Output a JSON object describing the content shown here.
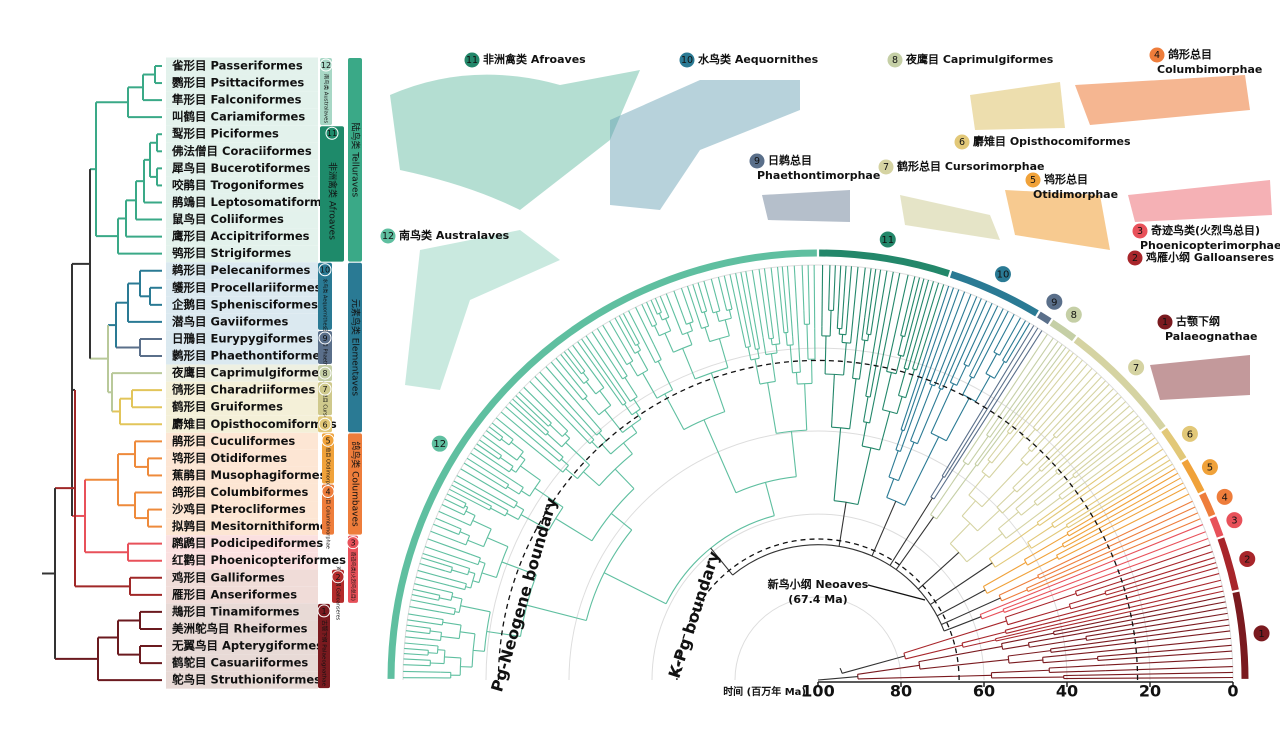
{
  "left_panel": {
    "orders": [
      "雀形目 Passeriformes",
      "鹦形目 Psittaciformes",
      "隼形目 Falconiformes",
      "叫鹤目 Cariamiformes",
      "䴕形目 Piciformes",
      "佛法僧目 Coraciiformes",
      "犀鸟目 Bucerotiformes",
      "咬鹃目 Trogoniformes",
      "鹃鴗目 Leptosomatiformes",
      "鼠鸟目 Coliiformes",
      "鹰形目 Accipitriformes",
      "鸮形目 Strigiformes",
      "鹈形目 Pelecaniformes",
      "鹱形目 Procellariiformes",
      "企鹅目 Sphenisciformes",
      "潜鸟目 Gaviiformes",
      "日鳽目 Eurypygiformes",
      "鹲形目 Phaethontiformes",
      "夜鹰目 Caprimulgiformes",
      "鸻形目 Charadriiformes",
      "鹤形目 Gruiformes",
      "麝雉目 Opisthocomiformes",
      "鹃形目 Cuculiformes",
      "鸨形目 Otidiformes",
      "蕉鹃目 Musophagiformes",
      "鸽形目 Columbiformes",
      "沙鸡目 Pterocliformes",
      "拟鹑目 Mesitornithiformes",
      "䴙䴘目 Podicipediformes",
      "红鹳目 Phoenicopteriformes",
      "鸡形目 Galliformes",
      "雁形目 Anseriformes",
      "䳍形目 Tinamiformes",
      "美洲鸵鸟目 Rheiformes",
      "无翼鸟目 Apterygiformes",
      "鹤鸵目 Casuariiformes",
      "鸵鸟目 Struthioniformes"
    ],
    "clades": [
      {
        "label": "南鸟类 Australaves",
        "num": 12
      },
      {
        "label": "非洲禽类 Afroaves",
        "num": 11
      },
      {
        "label": "陆鸟类 Telluraves"
      },
      {
        "label": "水鸟类 Aequornithes",
        "num": 10
      },
      {
        "label": "日鹈总目 Phaethontim.",
        "num": 9
      },
      {
        "num": 8
      },
      {
        "label": "鹤形总目 Cursorim.",
        "num": 7
      },
      {
        "num": 6
      },
      {
        "label": "元素鸟类 Elementaves"
      },
      {
        "label": "鸨形总目 Otidimorphae",
        "num": 5
      },
      {
        "label": "鸽形总目 Columbimorphae",
        "num": 4
      },
      {
        "label": "鸽鸟类 Columbaves"
      },
      {
        "label": "奇迹鸟类(火烈鸟总目)",
        "num": 3
      },
      {
        "label": "鸡雁小纲 Galloanseres",
        "num": 2
      },
      {
        "label": "古颚下纲 Palaeognathae",
        "num": 1
      }
    ]
  },
  "groups": [
    {
      "num": 1,
      "lines": [
        "古颚下纲",
        "Palaeognathae"
      ]
    },
    {
      "num": 2,
      "lines": [
        "鸡雁小纲 Galloanseres"
      ]
    },
    {
      "num": 3,
      "lines": [
        "奇迹鸟类(火烈鸟总目)",
        "Phoenicopterimorphae"
      ]
    },
    {
      "num": 4,
      "lines": [
        "鸽形总目",
        "Columbimorphae"
      ]
    },
    {
      "num": 5,
      "lines": [
        "鸨形总目",
        "Otidimorphae"
      ]
    },
    {
      "num": 6,
      "lines": [
        "麝雉目 Opisthocomiformes"
      ]
    },
    {
      "num": 7,
      "lines": [
        "鹤形总目 Cursorimorphae"
      ]
    },
    {
      "num": 8,
      "lines": [
        "夜鹰目 Caprimulgiformes"
      ]
    },
    {
      "num": 9,
      "lines": [
        "日鹈总目",
        "Phaethontimorphae"
      ]
    },
    {
      "num": 10,
      "lines": [
        "水鸟类 Aequornithes"
      ]
    },
    {
      "num": 11,
      "lines": [
        "非洲禽类 Afroaves"
      ]
    },
    {
      "num": 12,
      "lines": [
        "南鸟类 Australaves"
      ]
    }
  ],
  "annotations": {
    "neoaves": [
      "新鸟小纲 Neoaves",
      "(67.4 Ma)"
    ],
    "pg_neogene": "Pg-Neogene boundary",
    "k_pg": "K-Pg boundary"
  },
  "time_axis": {
    "title": "时间 (百万年 Ma)",
    "ticks": [
      100,
      80,
      60,
      40,
      20,
      0
    ]
  }
}
